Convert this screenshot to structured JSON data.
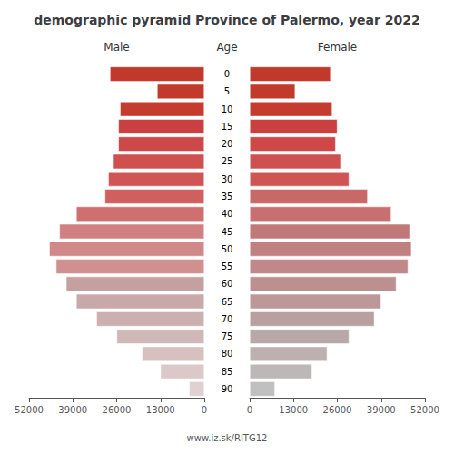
{
  "chart_data": {
    "type": "bar",
    "orientation": "horizontal",
    "title": "demographic pyramid Province of Palermo, year 2022",
    "subtitle": "www.iz.sk/RITG12",
    "ylabel": "Age",
    "categories": [
      "90",
      "85",
      "80",
      "75",
      "70",
      "65",
      "60",
      "55",
      "50",
      "45",
      "40",
      "35",
      "30",
      "25",
      "20",
      "15",
      "10",
      "5",
      "0"
    ],
    "series": [
      {
        "name": "Male",
        "colors": [
          "#e0d0d0",
          "#dcc8c8",
          "#d8c0c0",
          "#d0b8b8",
          "#ccb0b0",
          "#c8a8a8",
          "#c4a0a0",
          "#d09090",
          "#d08888",
          "#d08080",
          "#cf7070",
          "#d06060",
          "#d05555",
          "#d05050",
          "#cd4848",
          "#ca4040",
          "#c53b2e",
          "#c23a2c",
          "#c0392b"
        ],
        "values": [
          4500,
          13000,
          18500,
          26000,
          32000,
          38000,
          41000,
          44000,
          46000,
          43000,
          38000,
          29500,
          28500,
          27000,
          25500,
          25500,
          25000,
          14000,
          28000
        ]
      },
      {
        "name": "Female",
        "colors": [
          "#c0c0c0",
          "#bcb8b8",
          "#bcb0b0",
          "#b8a8a8",
          "#b8a0a0",
          "#bc9898",
          "#bc9090",
          "#c08888",
          "#c08080",
          "#c07878",
          "#c87070",
          "#c86868",
          "#cf5555",
          "#cf5050",
          "#ce4848",
          "#ca4040",
          "#c53b2d",
          "#c23a2c",
          "#c0392b"
        ],
        "values": [
          7500,
          18500,
          23000,
          29500,
          37000,
          39000,
          43500,
          47000,
          48000,
          47500,
          42000,
          35000,
          29500,
          27000,
          25500,
          26000,
          24500,
          13500,
          24000
        ]
      }
    ],
    "xlim": [
      0,
      52000
    ],
    "xticks": [
      0,
      13000,
      26000,
      39000,
      52000
    ],
    "grid": false
  }
}
